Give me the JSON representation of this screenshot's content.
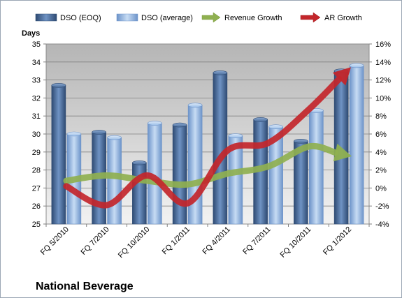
{
  "chart_data": {
    "type": "bar",
    "title": "",
    "company": "National Beverage",
    "ylabel": "Days",
    "ylim": [
      25,
      35
    ],
    "y2lim": [
      -4,
      16
    ],
    "y_ticks": [
      "35",
      "34",
      "33",
      "32",
      "31",
      "30",
      "29",
      "28",
      "27",
      "26",
      "25"
    ],
    "y2_ticks": [
      "16%",
      "14%",
      "12%",
      "10%",
      "8%",
      "6%",
      "4%",
      "2%",
      "0%",
      "-2%",
      "-4%"
    ],
    "categories": [
      "FQ 5/2010",
      "FQ 7/2010",
      "FQ 10/2010",
      "FQ 1/2011",
      "FQ 4/2011",
      "FQ 7/2011",
      "FQ 10/2011",
      "FQ 1/2012"
    ],
    "legend_position": "top",
    "grid": true,
    "series": [
      {
        "name": "DSO (EOQ)",
        "axis": "left",
        "kind": "bar",
        "color": "#4a6d9b",
        "values": [
          32.7,
          30.1,
          28.4,
          30.5,
          33.4,
          30.8,
          29.6,
          33.5
        ]
      },
      {
        "name": "DSO (average)",
        "axis": "left",
        "kind": "bar",
        "color": "#8db3e2",
        "values": [
          30.0,
          29.8,
          30.6,
          31.6,
          29.9,
          30.4,
          31.3,
          33.8
        ]
      },
      {
        "name": "Revenue Growth",
        "axis": "right",
        "kind": "line",
        "color": "#8fb050",
        "values": [
          0.8,
          1.4,
          0.8,
          0.4,
          1.6,
          2.4,
          4.6,
          3.6
        ]
      },
      {
        "name": "AR Growth",
        "axis": "right",
        "kind": "line",
        "color": "#c3262b",
        "values": [
          0.2,
          -1.9,
          1.4,
          -1.7,
          4.2,
          5.0,
          8.7,
          13.2
        ]
      }
    ]
  }
}
